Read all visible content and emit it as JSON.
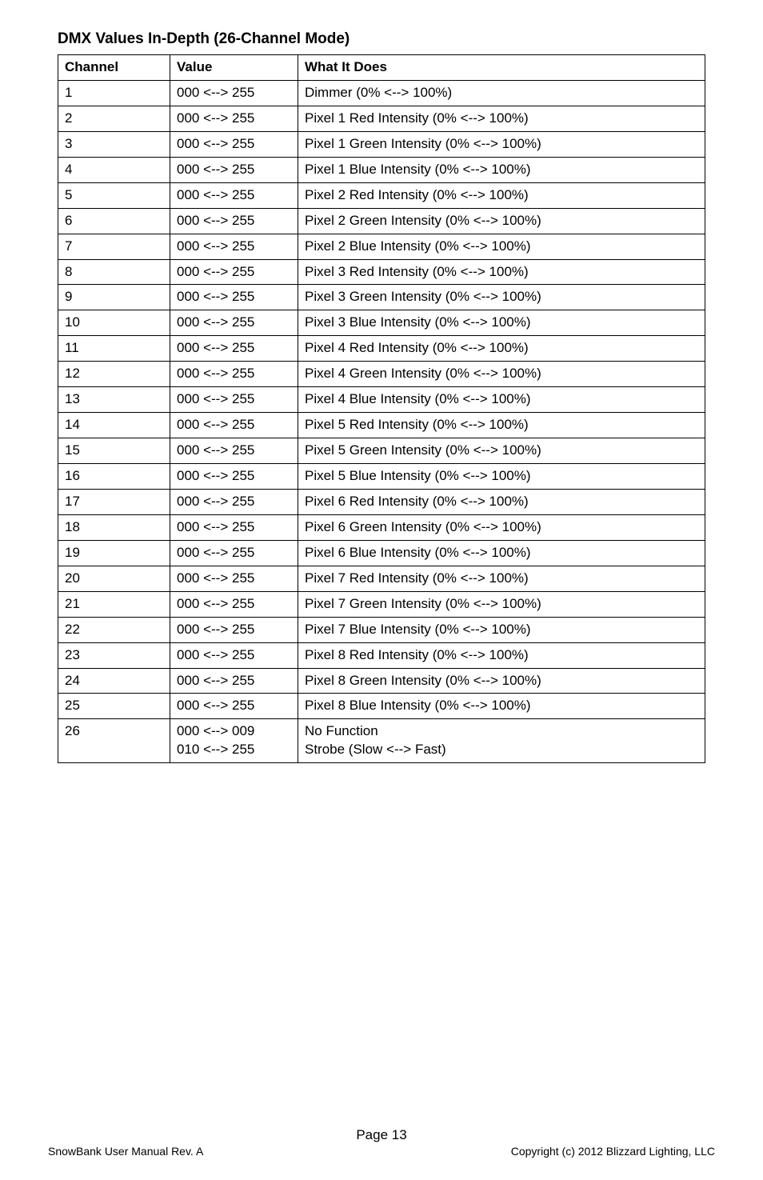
{
  "title": "DMX Values In-Depth (26-Channel Mode)",
  "table": {
    "headers": {
      "channel": "Channel",
      "value": "Value",
      "what": "What It Does"
    },
    "rows": [
      {
        "channel": "1",
        "value": "000 <--> 255",
        "what": "Dimmer (0% <--> 100%)"
      },
      {
        "channel": "2",
        "value": "000 <--> 255",
        "what": "Pixel 1 Red Intensity  (0% <--> 100%)"
      },
      {
        "channel": "3",
        "value": "000 <--> 255",
        "what": "Pixel 1 Green Intensity (0% <--> 100%)"
      },
      {
        "channel": "4",
        "value": "000 <--> 255",
        "what": "Pixel 1 Blue Intensity (0% <--> 100%)"
      },
      {
        "channel": "5",
        "value": "000 <--> 255",
        "what": "Pixel 2 Red Intensity (0% <--> 100%)"
      },
      {
        "channel": "6",
        "value": "000 <--> 255",
        "what": "Pixel 2 Green Intensity (0% <--> 100%)"
      },
      {
        "channel": "7",
        "value": "000 <--> 255",
        "what": "Pixel 2 Blue Intensity (0% <--> 100%)"
      },
      {
        "channel": "8",
        "value": "000 <--> 255",
        "what": "Pixel 3 Red Intensity (0% <--> 100%)"
      },
      {
        "channel": "9",
        "value": "000 <--> 255",
        "what": "Pixel 3 Green Intensity (0% <--> 100%)"
      },
      {
        "channel": "10",
        "value": "000 <--> 255",
        "what": "Pixel 3 Blue Intensity (0% <--> 100%)"
      },
      {
        "channel": "11",
        "value": "000 <--> 255",
        "what": "Pixel 4 Red Intensity (0% <--> 100%)"
      },
      {
        "channel": "12",
        "value": "000 <--> 255",
        "what": "Pixel 4 Green Intensity (0% <--> 100%)"
      },
      {
        "channel": "13",
        "value": "000 <--> 255",
        "what": "Pixel 4 Blue Intensity (0% <--> 100%)"
      },
      {
        "channel": "14",
        "value": "000 <--> 255",
        "what": "Pixel 5 Red Intensity (0% <--> 100%)"
      },
      {
        "channel": "15",
        "value": "000 <--> 255",
        "what": "Pixel 5 Green Intensity (0% <--> 100%)"
      },
      {
        "channel": "16",
        "value": "000 <--> 255",
        "what": "Pixel 5 Blue Intensity (0% <--> 100%)"
      },
      {
        "channel": "17",
        "value": "000 <--> 255",
        "what": "Pixel 6 Red Intensity (0% <--> 100%)"
      },
      {
        "channel": "18",
        "value": "000 <--> 255",
        "what": "Pixel 6 Green Intensity (0% <--> 100%)"
      },
      {
        "channel": "19",
        "value": "000 <--> 255",
        "what": "Pixel 6 Blue Intensity (0% <--> 100%)"
      },
      {
        "channel": "20",
        "value": "000 <--> 255",
        "what": "Pixel 7 Red Intensity (0% <--> 100%)"
      },
      {
        "channel": "21",
        "value": "000 <--> 255",
        "what": "Pixel 7 Green Intensity (0% <--> 100%)"
      },
      {
        "channel": "22",
        "value": "000 <--> 255",
        "what": "Pixel 7 Blue Intensity (0% <--> 100%)"
      },
      {
        "channel": "23",
        "value": "000 <--> 255",
        "what": "Pixel 8 Red Intensity (0% <--> 100%)"
      },
      {
        "channel": "24",
        "value": "000 <--> 255",
        "what": "Pixel 8 Green Intensity (0% <--> 100%)"
      },
      {
        "channel": "25",
        "value": "000 <--> 255",
        "what": "Pixel 8 Blue Intensity (0% <--> 100%)"
      },
      {
        "channel": "26",
        "value": "000 <--> 009\n010 <--> 255",
        "what": "No Function\nStrobe (Slow <--> Fast)"
      }
    ]
  },
  "footer": {
    "page_label": "Page 13",
    "left": "SnowBank User Manual Rev. A",
    "right": "Copyright (c) 2012 Blizzard Lighting, LLC"
  }
}
